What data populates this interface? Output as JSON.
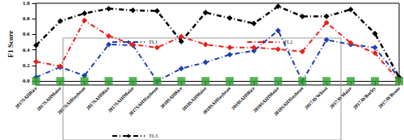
{
  "chart_data": {
    "type": "line",
    "y_label": "F1 Score",
    "categories": [
      "2017SAHRice",
      "2017SAHMaize",
      "2017SAHSoybean",
      "2017SAHIRice",
      "2017SAHIMaize",
      "2017SAHISoybean",
      "2018SAHRice",
      "2018SAHMaize",
      "2018SAHSoybean",
      "2018SAHIRice",
      "2018SAHIMaize",
      "2018SAHISoybean",
      "2017AVWheat",
      "2017AVMaize",
      "2017AVBarley",
      "2017AVBeans"
    ],
    "series": [
      {
        "name": "TL1",
        "color": "#1f3fa8",
        "marker": "diamond",
        "line_style": "dashdot",
        "values": [
          0.05,
          0.18,
          0.07,
          0.47,
          0.46,
          0.0,
          0.16,
          0.24,
          0.34,
          0.39,
          0.65,
          0.0,
          0.53,
          0.47,
          0.43,
          0.04
        ]
      },
      {
        "name": "TL2",
        "color": "#e8201c",
        "marker": "diamond",
        "line_style": "dashdot",
        "values": [
          0.25,
          0.19,
          0.78,
          0.58,
          0.47,
          0.43,
          0.57,
          0.47,
          0.43,
          0.43,
          0.41,
          0.38,
          0.75,
          0.49,
          0.36,
          0.0
        ]
      },
      {
        "name": "TL3",
        "color": "#000000",
        "marker": "diamond",
        "line_style": "dashdot",
        "values": [
          0.46,
          0.77,
          0.87,
          0.93,
          0.91,
          0.9,
          0.51,
          0.88,
          0.81,
          0.74,
          0.96,
          0.83,
          0.83,
          0.92,
          0.61,
          0.05
        ]
      },
      {
        "type": "scatter",
        "color": "#2ca02c",
        "marker": "star",
        "values": [
          0,
          0,
          0,
          0,
          0,
          0,
          0,
          0,
          0,
          0,
          0,
          0,
          0,
          0,
          0,
          0
        ]
      }
    ],
    "ylim": [
      -0.05,
      1.0
    ],
    "yticks": [
      {
        "value": 0,
        "label": "0.0"
      },
      0.2,
      0.4,
      0.6,
      0.8,
      {
        "value": 1,
        "label": "1.0"
      }
    ],
    "legend": "bottom",
    "grid": false
  }
}
